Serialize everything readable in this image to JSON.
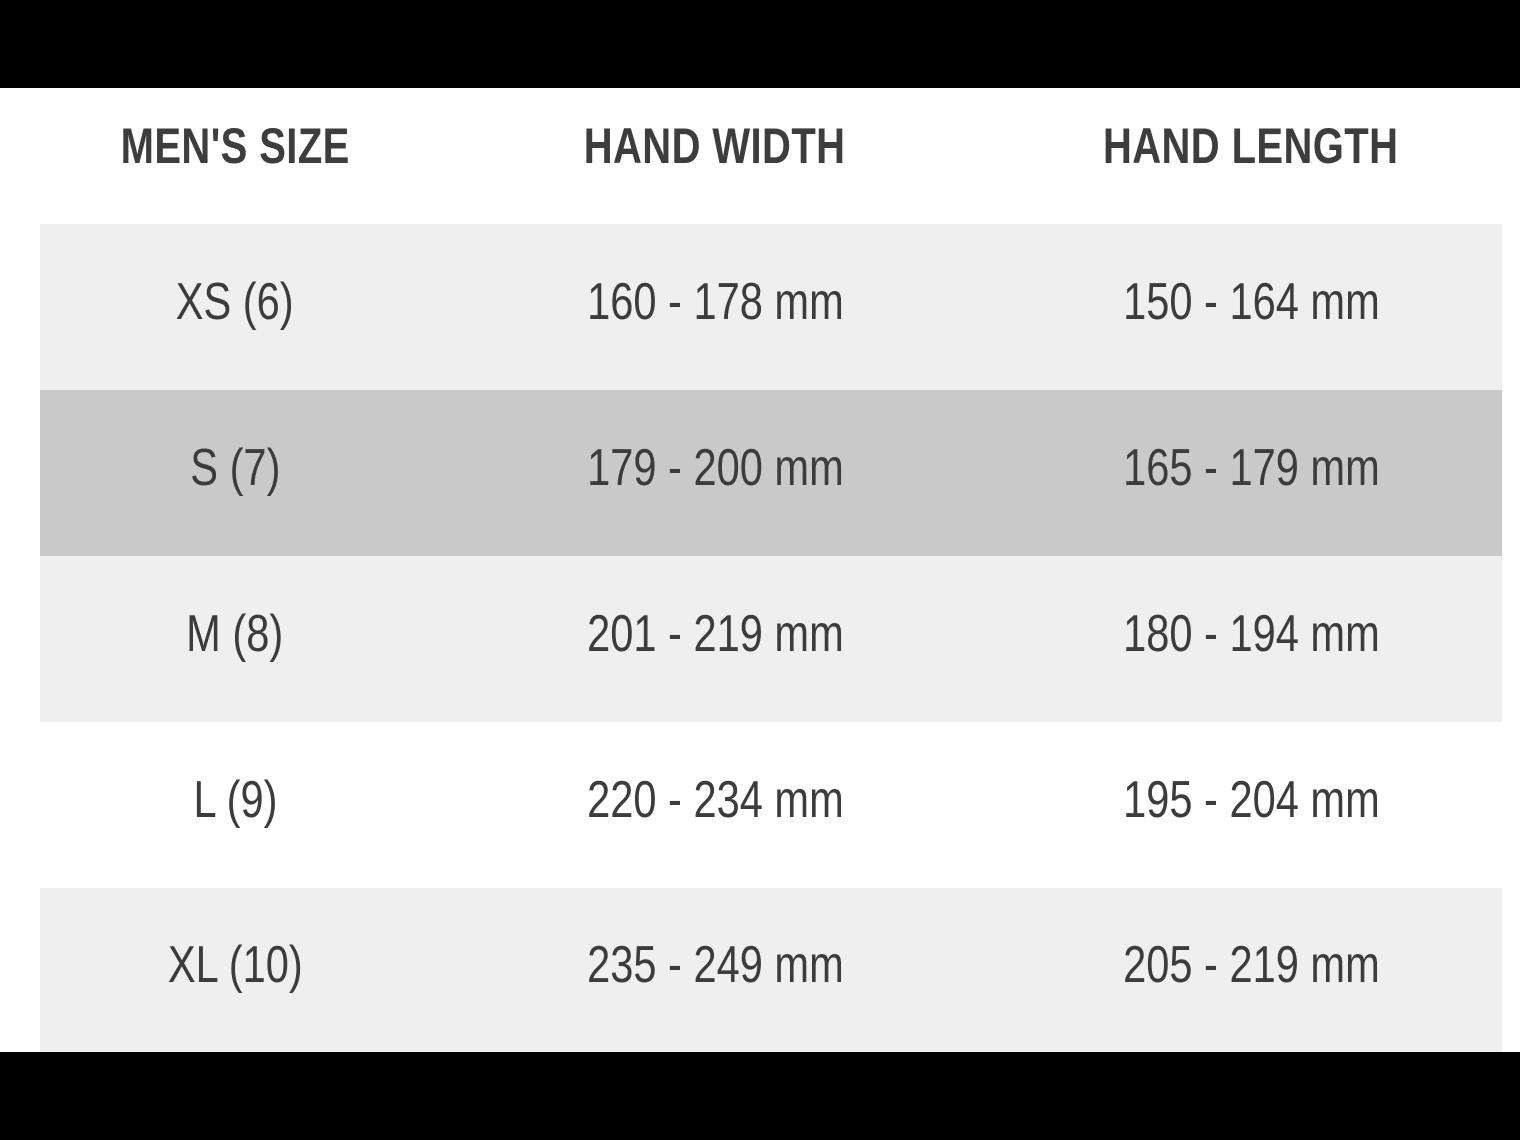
{
  "chart_data": {
    "type": "table",
    "columns": [
      "MEN'S SIZE",
      "HAND WIDTH",
      "HAND LENGTH"
    ],
    "rows": [
      {
        "size": "XS (6)",
        "hand_width": "160 - 178 mm",
        "hand_length": "150 - 164 mm",
        "highlight": "light"
      },
      {
        "size": "S (7)",
        "hand_width": "179 - 200 mm",
        "hand_length": "165 - 179 mm",
        "highlight": "selected"
      },
      {
        "size": "M (8)",
        "hand_width": "201 - 219 mm",
        "hand_length": "180 - 194 mm",
        "highlight": "light"
      },
      {
        "size": "L (9)",
        "hand_width": "220 - 234 mm",
        "hand_length": "195 - 204 mm",
        "highlight": "none"
      },
      {
        "size": "XL (10)",
        "hand_width": "235 - 249 mm",
        "hand_length": "205 - 219 mm",
        "highlight": "light"
      }
    ]
  },
  "colors": {
    "letterbox": "#000000",
    "row_light": "#efefef",
    "row_selected": "#c9c9c9",
    "row_plain": "#ffffff",
    "header_text": "#3d3d3d",
    "text": "#3c3c3c"
  }
}
